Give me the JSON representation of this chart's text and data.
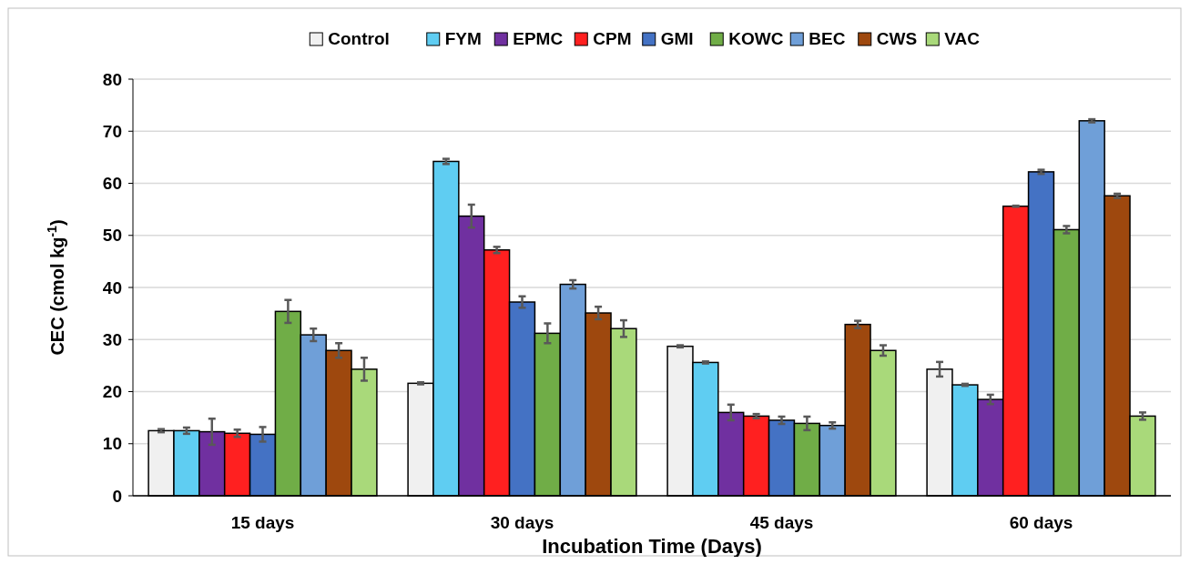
{
  "chart_data": {
    "type": "bar",
    "xlabel": "Incubation Time (Days)",
    "ylabel": "CEC (cmol kg$^{-1}$)",
    "categories": [
      "15 days",
      "30 days",
      "45 days",
      "60 days"
    ],
    "ylim": [
      0,
      80
    ],
    "yticks": [
      0,
      10,
      20,
      30,
      40,
      50,
      60,
      70,
      80
    ],
    "grid": "y",
    "legend": "top",
    "series": [
      {
        "name": "Control",
        "color": "#f0f0f0",
        "values": [
          12.5,
          21.6,
          28.7,
          24.3
        ],
        "errors": [
          0.3,
          0.2,
          0.2,
          1.4
        ]
      },
      {
        "name": "FYM",
        "color": "#5fcdf2",
        "values": [
          12.5,
          64.2,
          25.6,
          21.3
        ],
        "errors": [
          0.6,
          0.5,
          0.2,
          0.2
        ]
      },
      {
        "name": "EPMC",
        "color": "#7030a0",
        "values": [
          12.3,
          53.7,
          16.0,
          18.5
        ],
        "errors": [
          2.5,
          2.2,
          1.5,
          0.9
        ]
      },
      {
        "name": "CPM",
        "color": "#ff2020",
        "values": [
          12.0,
          47.2,
          15.3,
          55.6
        ],
        "errors": [
          0.7,
          0.6,
          0.4,
          0.1
        ]
      },
      {
        "name": "GMI",
        "color": "#4472c4",
        "values": [
          11.8,
          37.2,
          14.5,
          62.2
        ],
        "errors": [
          1.4,
          1.1,
          0.7,
          0.4
        ]
      },
      {
        "name": "KOWC",
        "color": "#70ad47",
        "values": [
          35.4,
          31.2,
          13.9,
          51.1
        ],
        "errors": [
          2.2,
          1.9,
          1.3,
          0.7
        ]
      },
      {
        "name": "BEC",
        "color": "#6f9fd8",
        "values": [
          30.9,
          40.6,
          13.5,
          72.0
        ],
        "errors": [
          1.2,
          0.8,
          0.6,
          0.3
        ]
      },
      {
        "name": "CWS",
        "color": "#9e480e",
        "values": [
          27.9,
          35.1,
          32.9,
          57.6
        ],
        "errors": [
          1.4,
          1.2,
          0.7,
          0.4
        ]
      },
      {
        "name": "VAC",
        "color": "#a9d97a",
        "values": [
          24.3,
          32.1,
          27.9,
          15.3
        ],
        "errors": [
          2.2,
          1.6,
          1.0,
          0.7
        ]
      }
    ]
  }
}
